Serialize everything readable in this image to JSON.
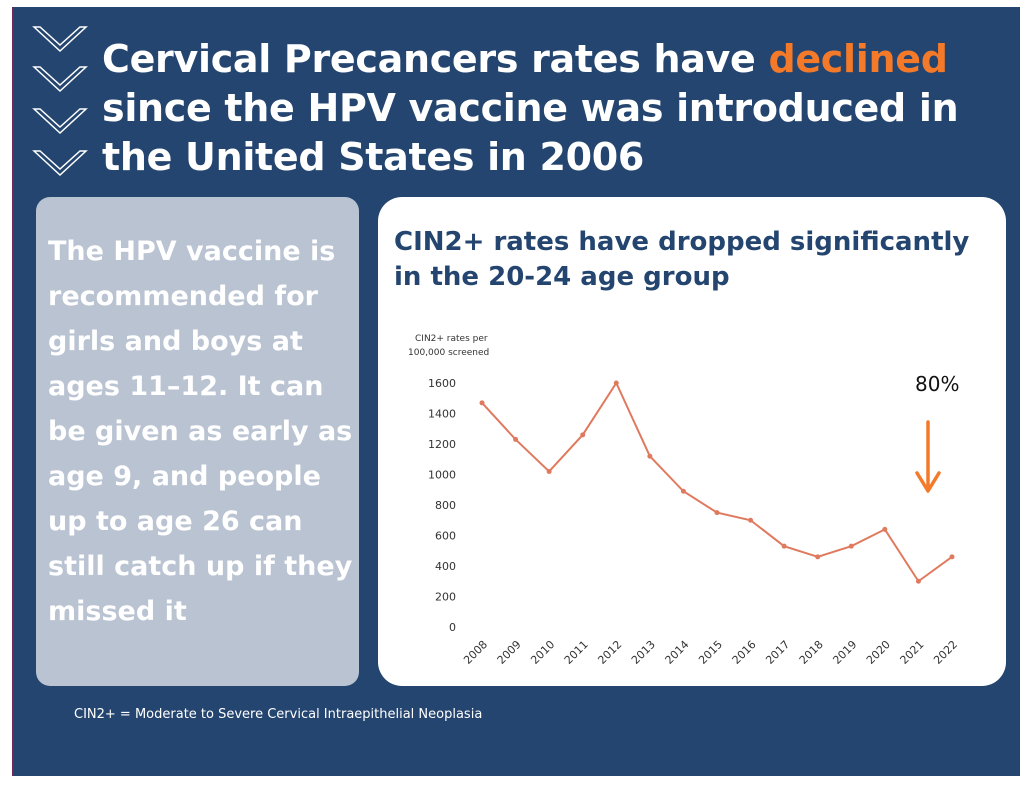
{
  "header": {
    "title_pre": "Cervical Precancers rates have ",
    "title_highlight": "declined",
    "title_post": " since the HPV vaccine was introduced in the United States in 2006",
    "highlight_color": "#f47a2a",
    "background_color": "#24456f"
  },
  "left_card": {
    "text": "The HPV vaccine is recommended for girls and boys at ages 11–12. It can be given as early as age 9, and people up to age 26 can still catch up if they missed it"
  },
  "chart_card": {
    "title": "CIN2+ rates have dropped significantly in the 20-24 age group"
  },
  "footnote": "CIN2+ = Moderate to Severe Cervical Intraepithelial Neoplasia",
  "chart_data": {
    "type": "line",
    "ylabel_line1": "CIN2+ rates per",
    "ylabel_line2": "100,000 screened",
    "x": [
      "2008",
      "2009",
      "2010",
      "2011",
      "2012",
      "2013",
      "2014",
      "2015",
      "2016",
      "2017",
      "2018",
      "2019",
      "2020",
      "2021",
      "2022"
    ],
    "values": [
      1470,
      1230,
      1020,
      1260,
      1600,
      1120,
      890,
      750,
      700,
      530,
      460,
      530,
      640,
      300,
      460
    ],
    "ylim": [
      0,
      1600
    ],
    "yticks": [
      0,
      200,
      400,
      600,
      800,
      1000,
      1200,
      1400,
      1600
    ],
    "grid": false,
    "line_color": "#e07a5f",
    "annotation": {
      "text": "80%",
      "arrow": "down",
      "arrow_color": "#f47a2a"
    }
  }
}
